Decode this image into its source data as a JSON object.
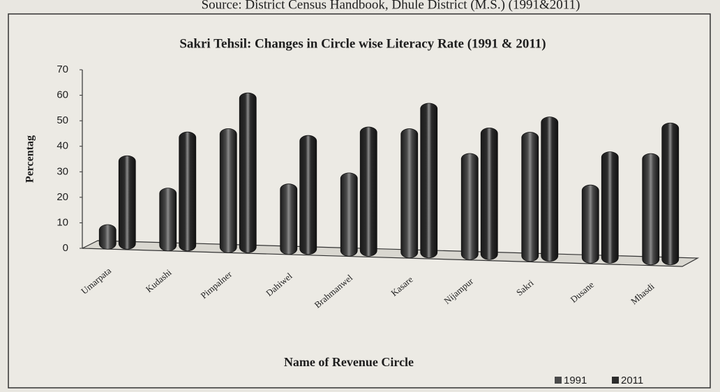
{
  "chart_data": {
    "type": "bar",
    "source": "Source: District Census Handbook, Dhule District (M.S.) (1991&2011)",
    "title": "Sakri Tehsil: Changes in Circle wise Literacy Rate (1991 & 2011)",
    "x_label": "Name of Revenue Circle",
    "y_label": "Percentag",
    "categories": [
      "Umarpata",
      "Kudashi",
      "Pimpalner",
      "Dahiwel",
      "Brahmanwel",
      "Kasare",
      "Nijampur",
      "Sakri",
      "Dusane",
      "Mhasdi"
    ],
    "series": [
      {
        "name": "1991",
        "color": "#4a4a4a",
        "values": [
          8,
          23,
          47,
          26,
          31,
          49,
          40,
          49,
          29,
          42
        ]
      },
      {
        "name": "2011",
        "color": "#2c2c2c",
        "values": [
          35,
          45,
          61,
          45,
          49,
          59,
          50,
          55,
          42,
          54
        ]
      }
    ],
    "ylim": [
      0,
      70
    ],
    "yticks": [
      0,
      10,
      20,
      30,
      40,
      50,
      60,
      70
    ]
  }
}
